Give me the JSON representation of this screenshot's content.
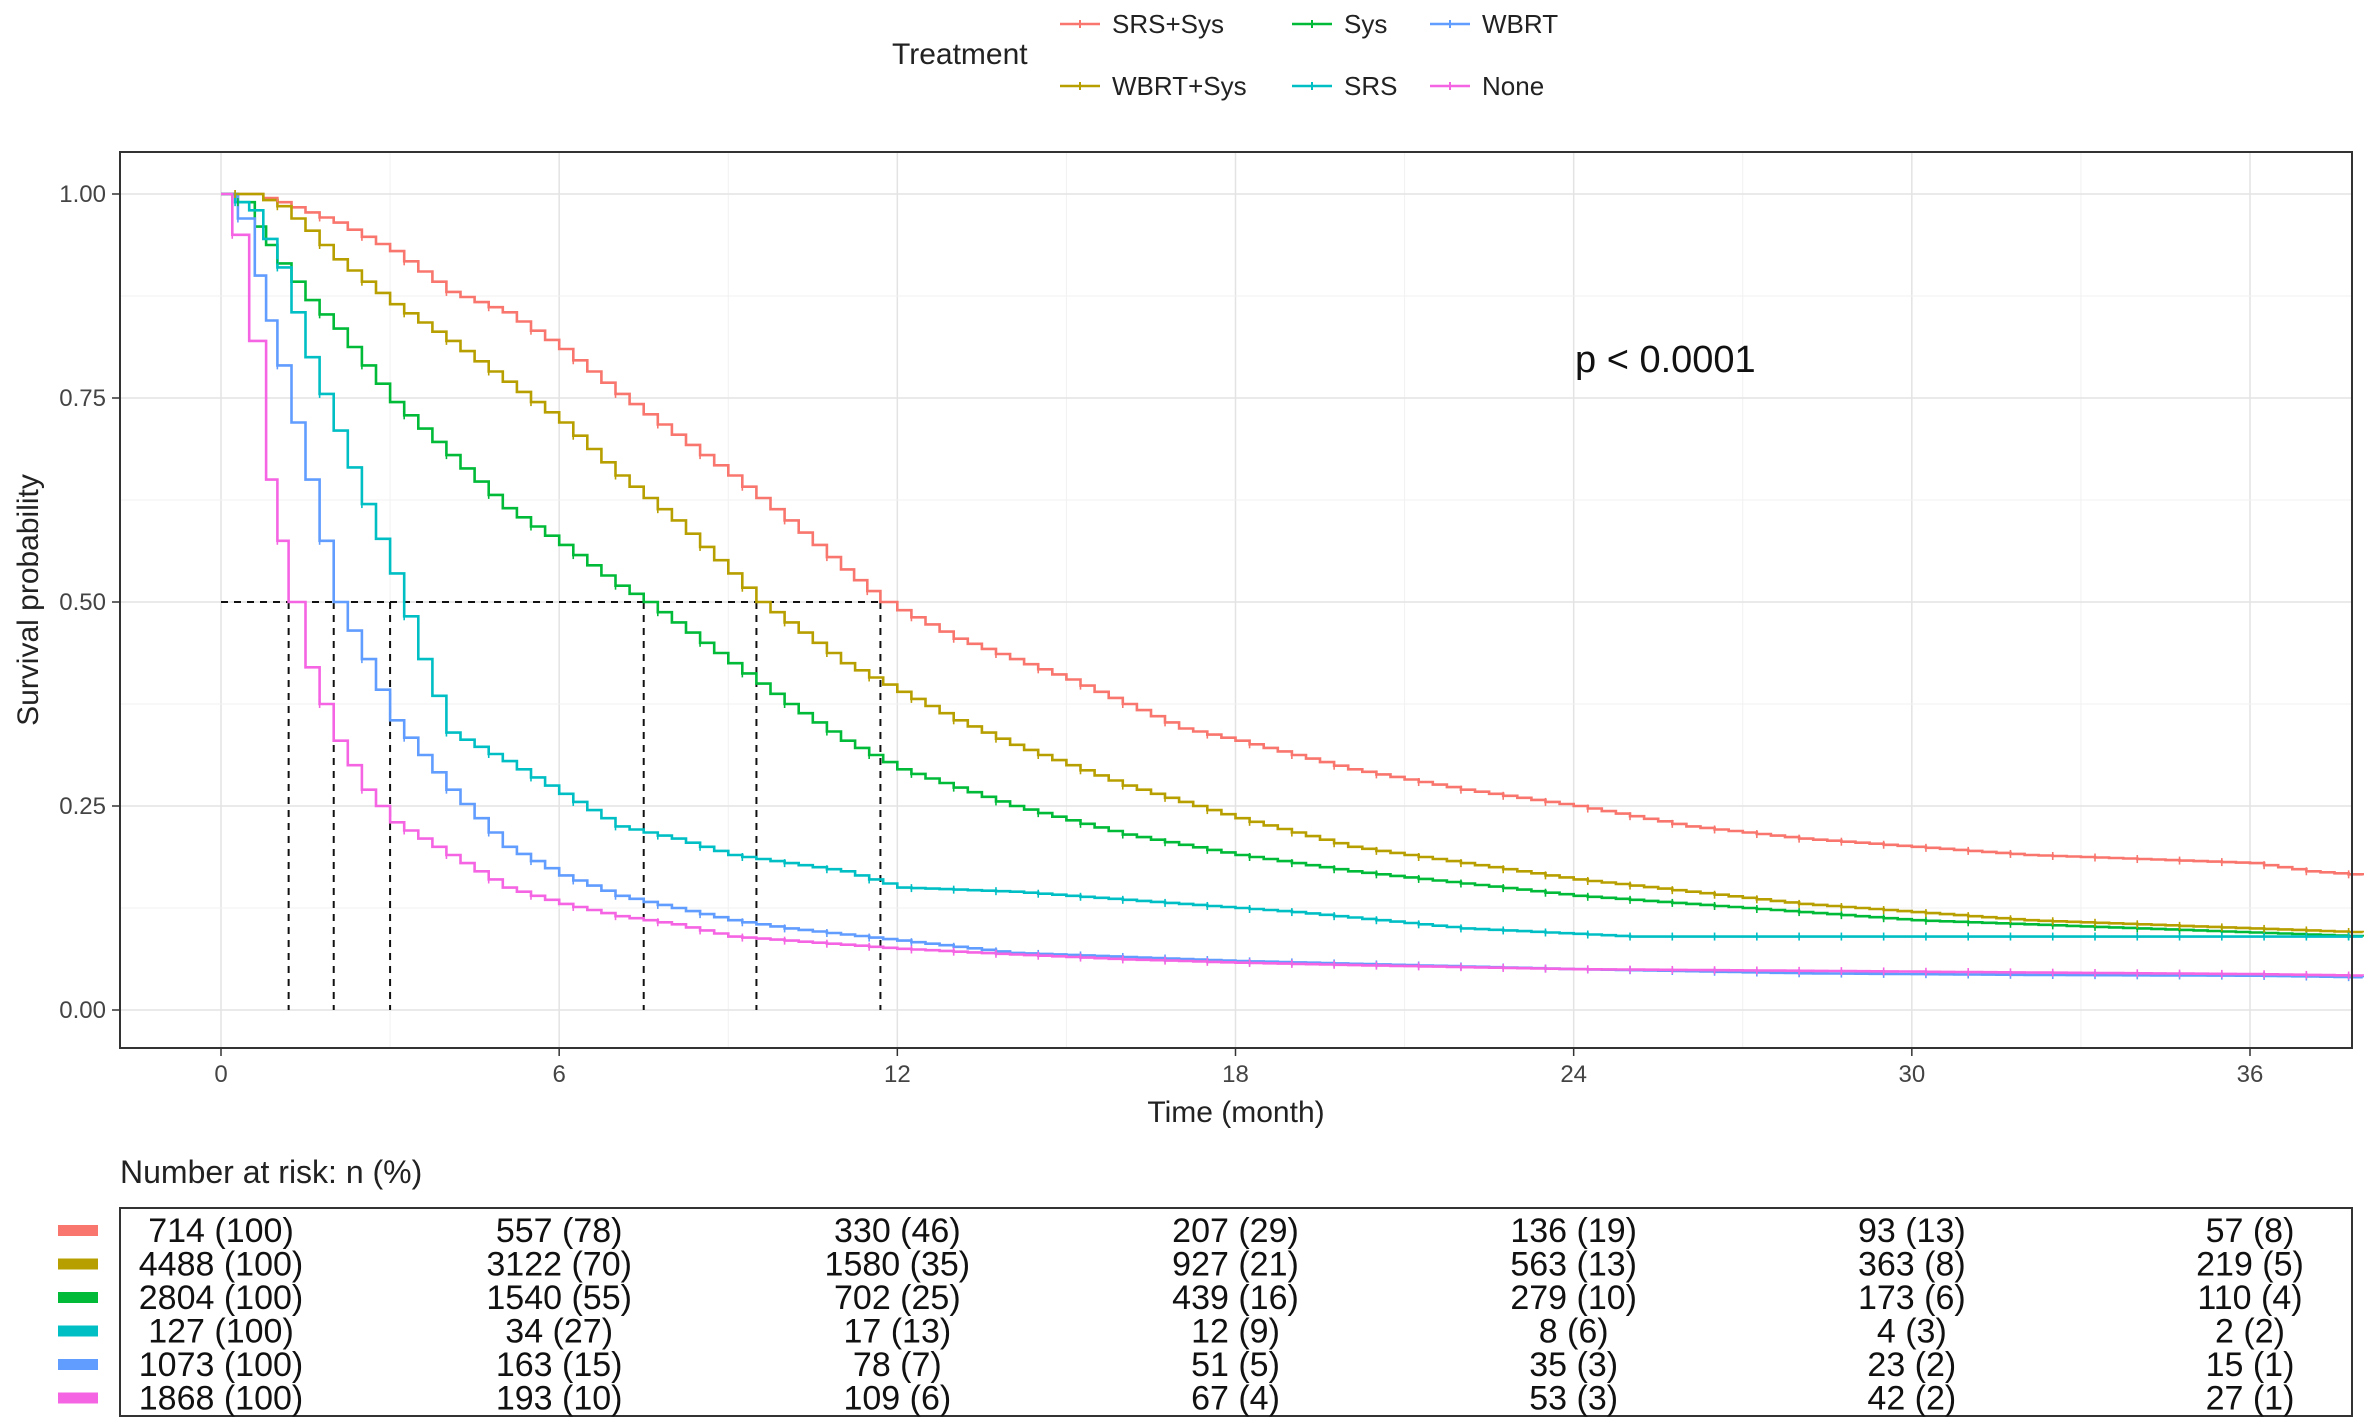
{
  "chart_data": {
    "type": "line",
    "subtype": "kaplan-meier",
    "legend_title": "Treatment",
    "legend_position": "top",
    "xlabel": "Time (month)",
    "ylabel": "Survival probability",
    "xlim": [
      0,
      38
    ],
    "ylim": [
      0,
      1
    ],
    "x_ticks": [
      0,
      6,
      12,
      18,
      24,
      30,
      36
    ],
    "x_tick_labels": [
      "0",
      "6",
      "12",
      "18",
      "24",
      "30",
      "36"
    ],
    "y_ticks": [
      0,
      0.25,
      0.5,
      0.75,
      1
    ],
    "y_tick_labels": [
      "0.00",
      "0.25",
      "0.50",
      "0.75",
      "1.00"
    ],
    "grid": true,
    "annotation": "p < 0.0001",
    "median_reference": 0.5,
    "series": [
      {
        "name": "SRS+Sys",
        "color": "#F8766D",
        "median": 11.7,
        "x": [
          0,
          0.5,
          1,
          2,
          3,
          4,
          5,
          6,
          7,
          8,
          9,
          10,
          11,
          11.7,
          12,
          13,
          14,
          15,
          16,
          17,
          18,
          20,
          22,
          24,
          26,
          28,
          30,
          32,
          34,
          36,
          37,
          38
        ],
        "y": [
          1.0,
          1.0,
          0.99,
          0.965,
          0.93,
          0.88,
          0.855,
          0.81,
          0.755,
          0.705,
          0.655,
          0.6,
          0.54,
          0.5,
          0.49,
          0.455,
          0.43,
          0.405,
          0.375,
          0.345,
          0.33,
          0.295,
          0.27,
          0.25,
          0.225,
          0.21,
          0.2,
          0.19,
          0.185,
          0.18,
          0.17,
          0.165
        ]
      },
      {
        "name": "Sys",
        "color": "#00BA38",
        "median": 7.5,
        "x": [
          0,
          0.3,
          0.6,
          1,
          1.5,
          2,
          3,
          4,
          5,
          6,
          7,
          7.5,
          8,
          9,
          10,
          11,
          12,
          14,
          16,
          18,
          20,
          22,
          24,
          26,
          28,
          30,
          32,
          34,
          36,
          38
        ],
        "y": [
          1.0,
          0.99,
          0.96,
          0.915,
          0.87,
          0.835,
          0.745,
          0.68,
          0.615,
          0.57,
          0.52,
          0.5,
          0.475,
          0.425,
          0.375,
          0.33,
          0.295,
          0.25,
          0.215,
          0.19,
          0.17,
          0.155,
          0.14,
          0.13,
          0.12,
          0.11,
          0.105,
          0.1,
          0.095,
          0.09
        ]
      },
      {
        "name": "WBRT",
        "color": "#619CFF",
        "median": 2.0,
        "x": [
          0,
          0.3,
          0.6,
          1,
          1.5,
          2,
          2.5,
          3,
          4,
          5,
          6,
          7,
          8,
          9,
          10,
          12,
          14,
          18,
          24,
          28,
          32,
          36,
          38
        ],
        "y": [
          1.0,
          0.97,
          0.9,
          0.79,
          0.65,
          0.5,
          0.43,
          0.355,
          0.27,
          0.2,
          0.165,
          0.14,
          0.125,
          0.11,
          0.1,
          0.085,
          0.07,
          0.06,
          0.05,
          0.045,
          0.043,
          0.042,
          0.04
        ]
      },
      {
        "name": "WBRT+Sys",
        "color": "#B79F00",
        "median": 9.5,
        "x": [
          0,
          0.5,
          1,
          1.5,
          2,
          3,
          4,
          5,
          6,
          7,
          8,
          9,
          9.5,
          10,
          11,
          12,
          13,
          14,
          15,
          16,
          17,
          18,
          20,
          22,
          24,
          26,
          28,
          30,
          32,
          34,
          36,
          38
        ],
        "y": [
          1.0,
          1.0,
          0.985,
          0.955,
          0.92,
          0.865,
          0.82,
          0.77,
          0.72,
          0.655,
          0.6,
          0.535,
          0.5,
          0.475,
          0.425,
          0.39,
          0.355,
          0.325,
          0.3,
          0.275,
          0.255,
          0.235,
          0.2,
          0.18,
          0.16,
          0.145,
          0.13,
          0.12,
          0.11,
          0.105,
          0.1,
          0.095
        ]
      },
      {
        "name": "SRS",
        "color": "#00BFC4",
        "median": 3.0,
        "x": [
          0,
          0.5,
          1,
          1.5,
          2,
          2.5,
          3,
          3.5,
          4,
          5,
          6,
          7,
          8,
          9,
          10,
          11,
          12,
          14,
          17,
          19,
          22,
          25,
          28,
          32,
          36,
          38
        ],
        "y": [
          1.0,
          0.98,
          0.91,
          0.8,
          0.71,
          0.62,
          0.535,
          0.43,
          0.34,
          0.305,
          0.265,
          0.225,
          0.21,
          0.19,
          0.18,
          0.17,
          0.15,
          0.145,
          0.13,
          0.12,
          0.1,
          0.09,
          0.09,
          0.09,
          0.09,
          0.09
        ]
      },
      {
        "name": "None",
        "color": "#F564E3",
        "median": 1.2,
        "x": [
          0,
          0.2,
          0.5,
          0.8,
          1.2,
          1.5,
          2,
          2.5,
          3,
          4,
          5,
          6,
          7,
          8,
          9,
          10,
          12,
          14,
          16,
          18,
          20,
          24,
          28,
          32,
          36,
          38
        ],
        "y": [
          1.0,
          0.95,
          0.82,
          0.65,
          0.5,
          0.42,
          0.33,
          0.27,
          0.23,
          0.19,
          0.15,
          0.13,
          0.115,
          0.105,
          0.09,
          0.085,
          0.075,
          0.068,
          0.062,
          0.058,
          0.055,
          0.05,
          0.048,
          0.046,
          0.044,
          0.042
        ]
      }
    ],
    "risk_table": {
      "title": "Number at risk: n (%)",
      "times": [
        0,
        6,
        12,
        18,
        24,
        30,
        36
      ],
      "rows": [
        {
          "name": "SRS+Sys",
          "color": "#F8766D",
          "values": [
            "714 (100)",
            "557 (78)",
            "330 (46)",
            "207 (29)",
            "136 (19)",
            "93 (13)",
            "57 (8)"
          ]
        },
        {
          "name": "WBRT+Sys",
          "color": "#B79F00",
          "values": [
            "4488 (100)",
            "3122 (70)",
            "1580 (35)",
            "927 (21)",
            "563 (13)",
            "363 (8)",
            "219 (5)"
          ]
        },
        {
          "name": "Sys",
          "color": "#00BA38",
          "values": [
            "2804 (100)",
            "1540 (55)",
            "702 (25)",
            "439 (16)",
            "279 (10)",
            "173 (6)",
            "110 (4)"
          ]
        },
        {
          "name": "SRS",
          "color": "#00BFC4",
          "values": [
            "127 (100)",
            "34 (27)",
            "17 (13)",
            "12 (9)",
            "8 (6)",
            "4 (3)",
            "2 (2)"
          ]
        },
        {
          "name": "WBRT",
          "color": "#619CFF",
          "values": [
            "1073 (100)",
            "163 (15)",
            "78 (7)",
            "51 (5)",
            "35 (3)",
            "23 (2)",
            "15 (1)"
          ]
        },
        {
          "name": "None",
          "color": "#F564E3",
          "values": [
            "1868 (100)",
            "193 (10)",
            "109 (6)",
            "67 (4)",
            "53 (3)",
            "42 (2)",
            "27 (1)"
          ]
        }
      ]
    }
  }
}
